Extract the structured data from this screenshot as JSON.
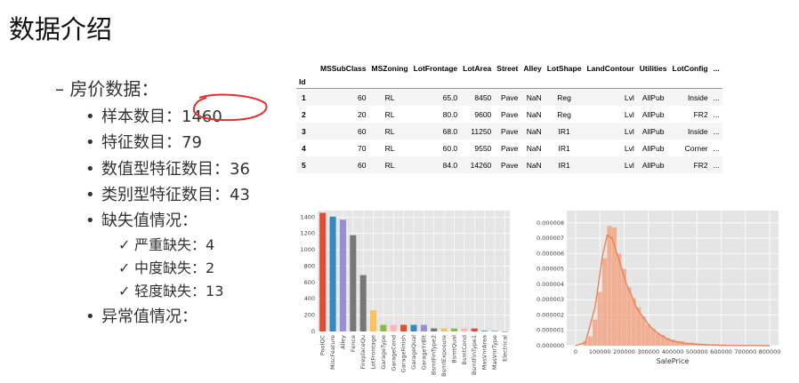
{
  "title": "数据介绍",
  "outline": {
    "heading": "– 房价数据：",
    "items": [
      {
        "label": "样本数目：",
        "value": "1460"
      },
      {
        "label": "特征数目：",
        "value": "79"
      },
      {
        "label": "数值型特征数目：",
        "value": "36"
      },
      {
        "label": "类别型特征数目：",
        "value": "43"
      },
      {
        "label": "缺失值情况：",
        "value": ""
      }
    ],
    "missing": [
      {
        "label": "严重缺失：",
        "value": "4"
      },
      {
        "label": "中度缺失：",
        "value": "2"
      },
      {
        "label": "轻度缺失：",
        "value": "13"
      }
    ],
    "outlier": "异常值情况：",
    "bullet": "•",
    "check": "✓"
  },
  "table": {
    "columns": [
      "MSSubClass",
      "MSZoning",
      "LotFrontage",
      "LotArea",
      "Street",
      "Alley",
      "LotShape",
      "LandContour",
      "Utilities",
      "LotConfig",
      "..."
    ],
    "index_name": "Id",
    "rows": [
      {
        "id": "1",
        "cells": [
          "60",
          "RL",
          "65.0",
          "8450",
          "Pave",
          "NaN",
          "Reg",
          "Lvl",
          "AllPub",
          "Inside",
          "..."
        ]
      },
      {
        "id": "2",
        "cells": [
          "20",
          "RL",
          "80.0",
          "9600",
          "Pave",
          "NaN",
          "Reg",
          "Lvl",
          "AllPub",
          "FR2",
          "..."
        ]
      },
      {
        "id": "3",
        "cells": [
          "60",
          "RL",
          "68.0",
          "11250",
          "Pave",
          "NaN",
          "IR1",
          "Lvl",
          "AllPub",
          "Inside",
          "..."
        ]
      },
      {
        "id": "4",
        "cells": [
          "70",
          "RL",
          "60.0",
          "9550",
          "Pave",
          "NaN",
          "IR1",
          "Lvl",
          "AllPub",
          "Corner",
          "..."
        ]
      },
      {
        "id": "5",
        "cells": [
          "60",
          "RL",
          "84.0",
          "14260",
          "Pave",
          "NaN",
          "IR1",
          "Lvl",
          "AllPub",
          "FR2",
          "..."
        ]
      }
    ]
  },
  "chart_data": [
    {
      "type": "bar",
      "title": "",
      "xlabel": "",
      "ylabel": "",
      "ylim": [
        0,
        1480
      ],
      "yticks": [
        0,
        200,
        400,
        600,
        800,
        1000,
        1200,
        1400
      ],
      "grid": true,
      "background": "#e5e5e5",
      "categories": [
        "PoolQC",
        "MiscFeature",
        "Alley",
        "Fence",
        "FireplaceQu",
        "LotFrontage",
        "GarageType",
        "GarageCond",
        "GarageFinish",
        "GarageQual",
        "GarageYrBlt",
        "BsmtFinType2",
        "BsmtExposure",
        "BsmtQual",
        "BsmtCond",
        "BsmtFinType1",
        "MasVnrArea",
        "MasVnrType",
        "Electrical"
      ],
      "values": [
        1453,
        1406,
        1369,
        1179,
        690,
        259,
        81,
        81,
        81,
        81,
        81,
        38,
        38,
        37,
        37,
        37,
        8,
        8,
        1
      ],
      "colors": [
        "#e24a33",
        "#348abd",
        "#988ed5",
        "#777777",
        "#777777",
        "#fbc15e",
        "#8eba42",
        "#ffb5b8",
        "#e24a33",
        "#348abd",
        "#988ed5",
        "#777777",
        "#fbc15e",
        "#8eba42",
        "#ffb5b8",
        "#e24a33",
        "#348abd",
        "#988ed5",
        "#777777"
      ]
    },
    {
      "type": "area",
      "title": "",
      "xlabel": "SalePrice",
      "ylabel": "",
      "xlim": [
        0,
        800000
      ],
      "ylim": [
        0,
        8.8e-06
      ],
      "xticks": [
        0,
        100000,
        200000,
        300000,
        400000,
        500000,
        600000,
        700000,
        800000
      ],
      "yticks": [
        0.0,
        1e-06,
        2e-06,
        3e-06,
        4e-06,
        5e-06,
        6e-06,
        7e-06,
        8e-06
      ],
      "ytick_labels": [
        "0.000000",
        "0.000001",
        "0.000002",
        "0.000003",
        "0.000004",
        "0.000005",
        "0.000006",
        "0.000007",
        "0.000008"
      ],
      "grid": true,
      "background": "#e5e5e5",
      "hist_color": "#f2a585",
      "line_color": "#e8835a",
      "hist_bins_start": 30000,
      "hist_bin_width": 20000,
      "hist_values": [
        3e-07,
        6e-07,
        1.7e-06,
        3.5e-06,
        5.7e-06,
        7.8e-06,
        7.7e-06,
        6e-06,
        5e-06,
        3.8e-06,
        3.1e-06,
        2.5e-06,
        1.9e-06,
        1.4e-06,
        1.1e-06,
        8e-07,
        7e-07,
        5e-07,
        4e-07,
        3e-07,
        3e-07,
        2e-07,
        2e-07,
        1e-07,
        1e-07,
        8e-08,
        6e-08,
        5e-08,
        4e-08,
        3e-08,
        2e-08,
        2e-08,
        1e-08,
        1e-08,
        1e-08,
        1e-08,
        0.0,
        0.0
      ],
      "kde": [
        [
          0,
          0.0
        ],
        [
          40000,
          2e-07
        ],
        [
          80000,
          2.5e-06
        ],
        [
          110000,
          5.8e-06
        ],
        [
          130000,
          7.2e-06
        ],
        [
          150000,
          7e-06
        ],
        [
          170000,
          6e-06
        ],
        [
          190000,
          5e-06
        ],
        [
          210000,
          4e-06
        ],
        [
          230000,
          3.3e-06
        ],
        [
          250000,
          2.5e-06
        ],
        [
          280000,
          1.8e-06
        ],
        [
          310000,
          1.2e-06
        ],
        [
          340000,
          8e-07
        ],
        [
          370000,
          5e-07
        ],
        [
          400000,
          3e-07
        ],
        [
          450000,
          1.5e-07
        ],
        [
          500000,
          1e-07
        ],
        [
          550000,
          5e-08
        ],
        [
          600000,
          3e-08
        ],
        [
          650000,
          2e-08
        ],
        [
          700000,
          1e-08
        ],
        [
          750000,
          1e-08
        ],
        [
          800000,
          0.0
        ]
      ]
    }
  ]
}
